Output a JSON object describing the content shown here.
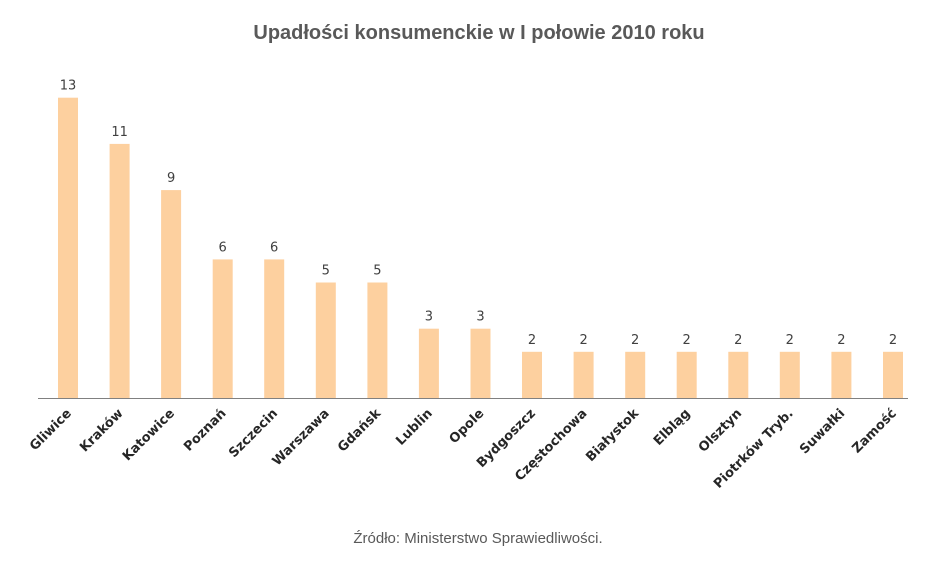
{
  "chart_data": {
    "type": "bar",
    "title": "Upadłości konsumenckie w I połowie 2010 roku",
    "categories": [
      "Gliwice",
      "Kraków",
      "Katowice",
      "Poznań",
      "Szczecin",
      "Warszawa",
      "Gdańsk",
      "Lublin",
      "Opole",
      "Bydgoszcz",
      "Częstochowa",
      "Białystok",
      "Elbląg",
      "Olsztyn",
      "Piotrków Tryb.",
      "Suwałki",
      "Zamość"
    ],
    "values": [
      13,
      11,
      9,
      6,
      6,
      5,
      5,
      3,
      3,
      2,
      2,
      2,
      2,
      2,
      2,
      2,
      2
    ],
    "ylim": [
      0,
      13
    ],
    "grid": false,
    "legend": "none",
    "bar_color": "#FDD09F",
    "axis_color": "#808080"
  },
  "source": "Źródło: Ministerstwo Sprawiedliwości."
}
